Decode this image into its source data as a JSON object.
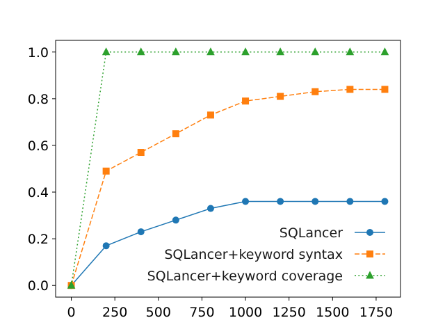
{
  "chart_data": {
    "type": "line",
    "title": "",
    "xlabel": "",
    "ylabel": "",
    "xlim": [
      -90,
      1890
    ],
    "ylim": [
      -0.05,
      1.05
    ],
    "x_ticks": [
      0,
      250,
      500,
      750,
      1000,
      1250,
      1500,
      1750
    ],
    "y_ticks": [
      0.0,
      0.2,
      0.4,
      0.6,
      0.8,
      1.0
    ],
    "x_tick_labels": [
      "0",
      "250",
      "500",
      "750",
      "1000",
      "1250",
      "1500",
      "1750"
    ],
    "y_tick_labels": [
      "0.0",
      "0.2",
      "0.4",
      "0.6",
      "0.8",
      "1.0"
    ],
    "grid": false,
    "legend_position": "lower-right",
    "x": [
      0,
      200,
      400,
      600,
      800,
      1000,
      1200,
      1400,
      1600,
      1800
    ],
    "series": [
      {
        "name": "SQLancer",
        "values": [
          0.0,
          0.17,
          0.23,
          0.28,
          0.33,
          0.36,
          0.36,
          0.36,
          0.36,
          0.36
        ],
        "color": "#1f77b4",
        "line_style": "solid",
        "marker": "circle"
      },
      {
        "name": "SQLancer+keyword syntax",
        "values": [
          0.0,
          0.49,
          0.57,
          0.65,
          0.73,
          0.79,
          0.81,
          0.83,
          0.84,
          0.84
        ],
        "color": "#ff7f0e",
        "line_style": "dashed",
        "marker": "square"
      },
      {
        "name": "SQLancer+keyword coverage",
        "values": [
          0.0,
          1.0,
          1.0,
          1.0,
          1.0,
          1.0,
          1.0,
          1.0,
          1.0,
          1.0
        ],
        "color": "#2ca02c",
        "line_style": "dotted",
        "marker": "triangle"
      }
    ]
  }
}
